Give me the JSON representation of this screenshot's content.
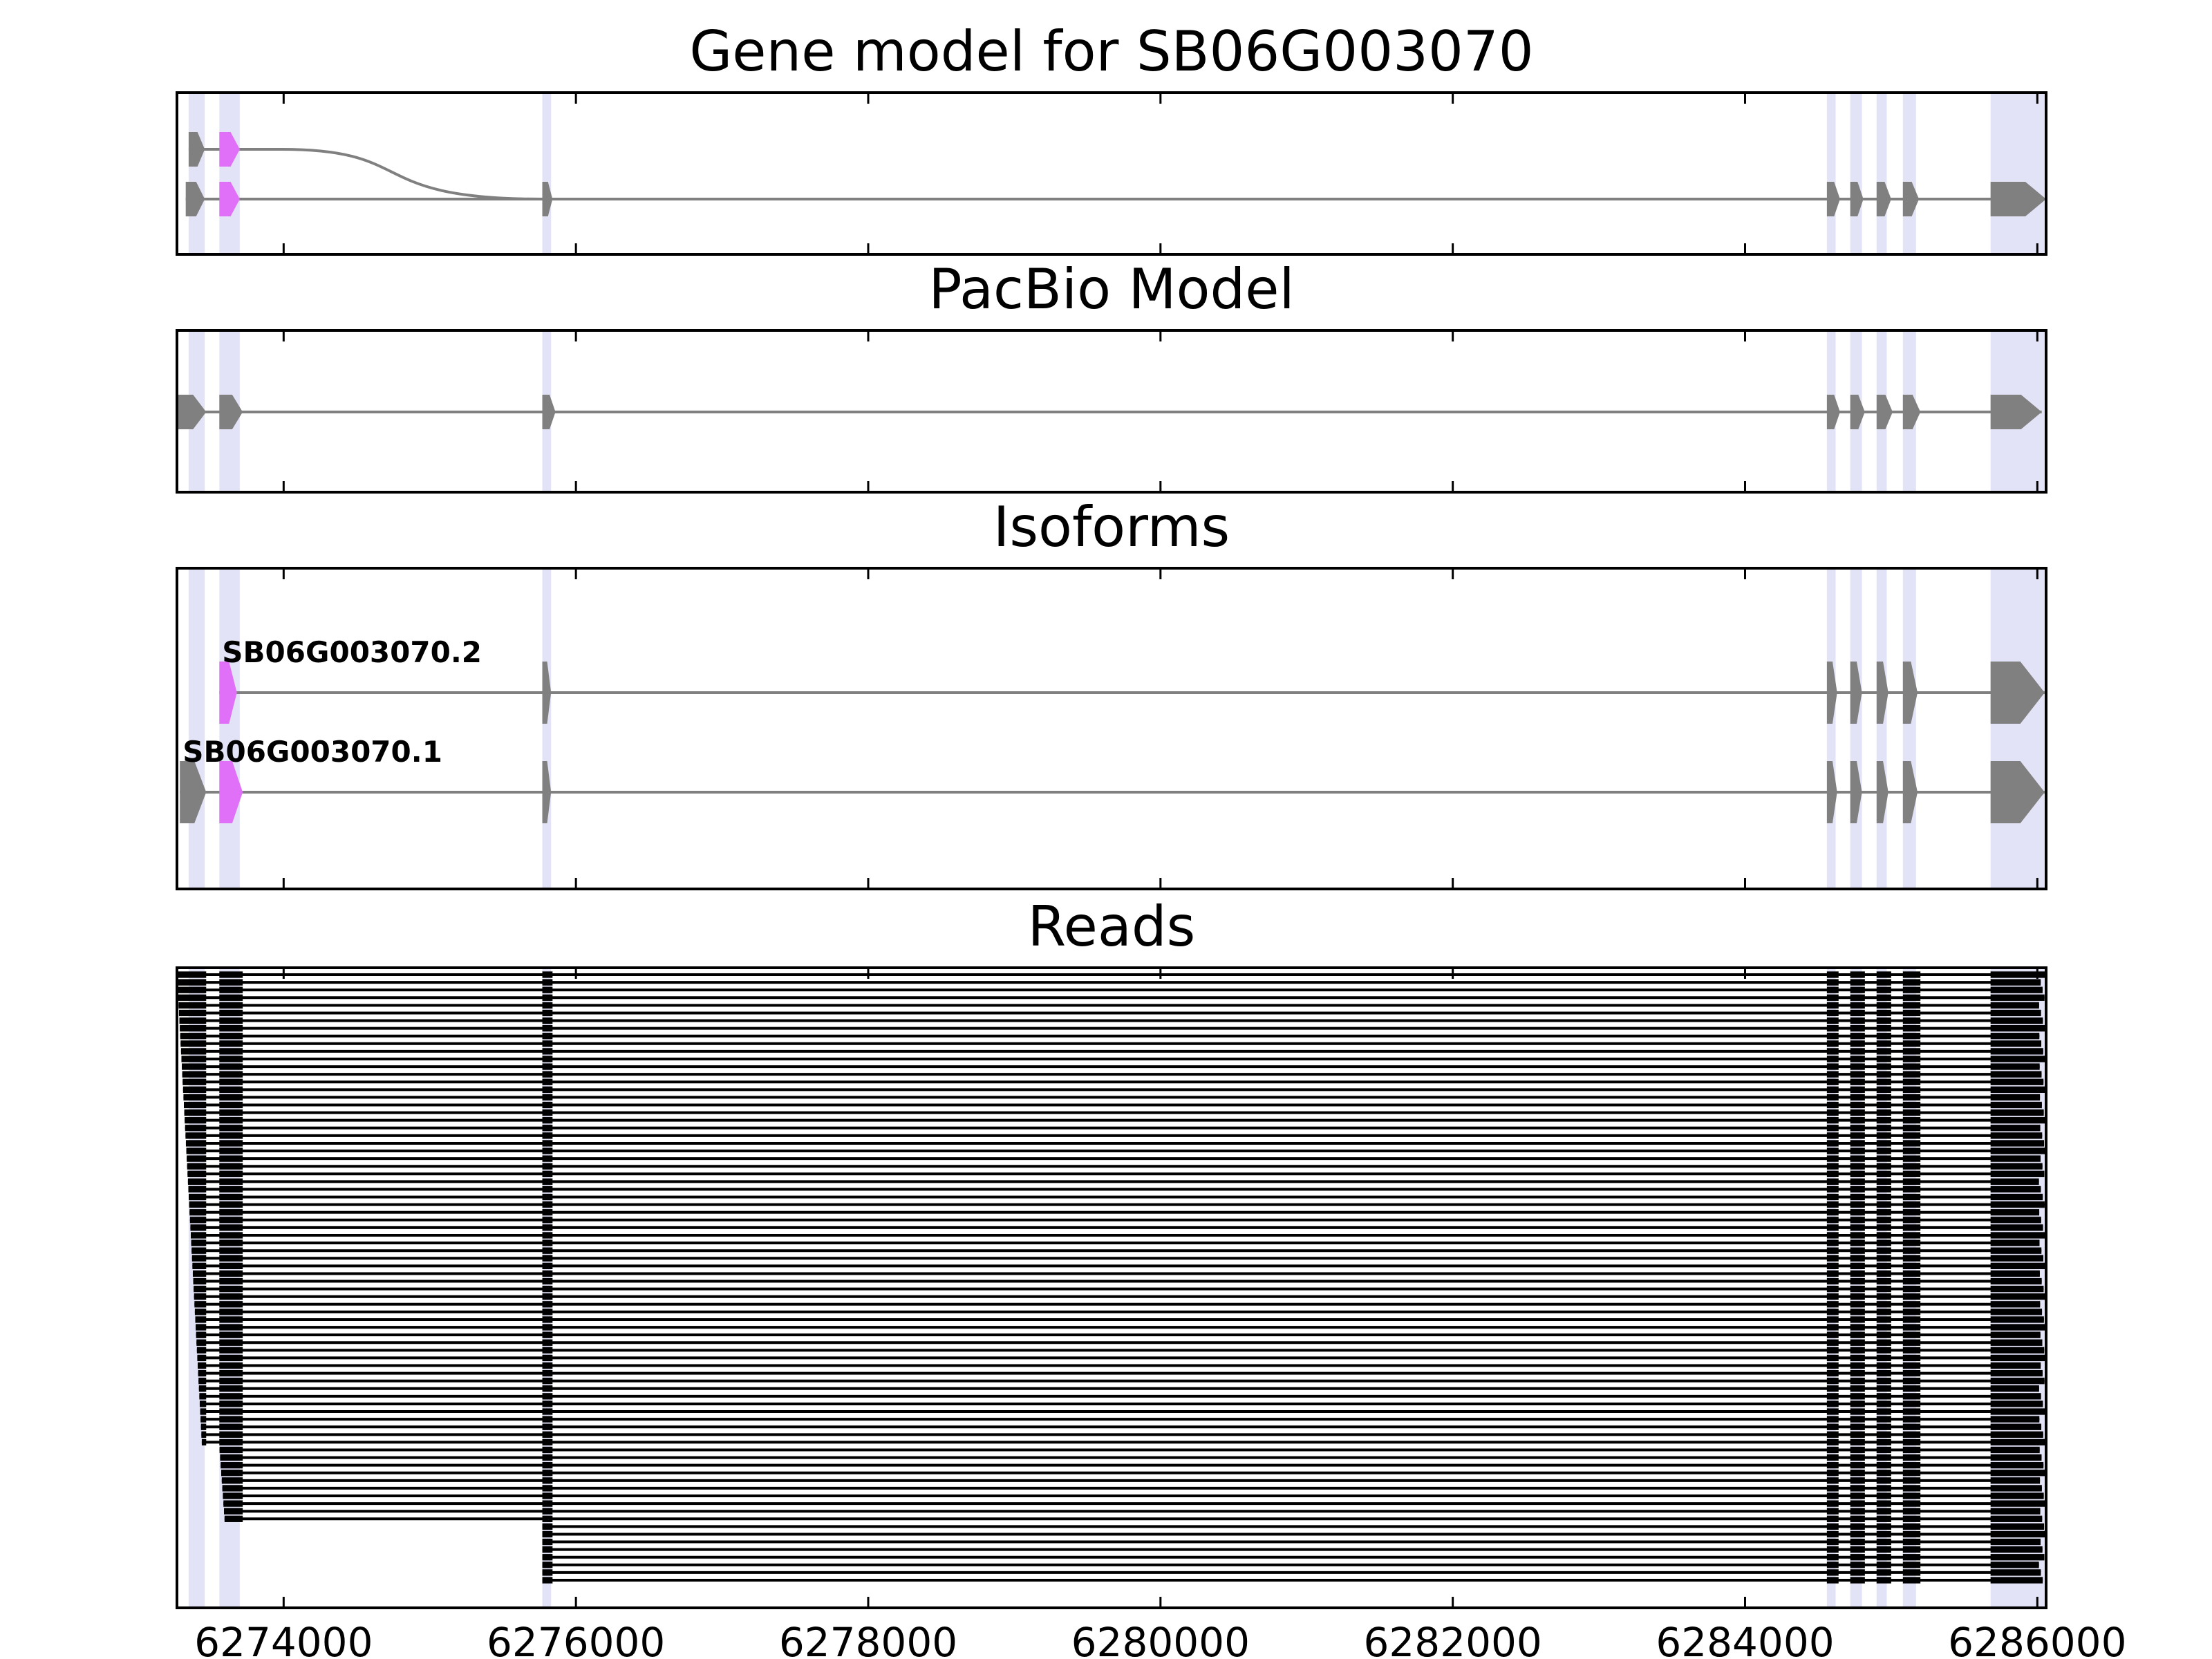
{
  "chart_data": {
    "type": "gene-structure",
    "x_axis": {
      "range": [
        6273270,
        6286060
      ],
      "ticks": [
        6274000,
        6276000,
        6278000,
        6280000,
        6282000,
        6284000,
        6286000
      ],
      "tick_labels": [
        "6274000",
        "6276000",
        "6278000",
        "6280000",
        "6282000",
        "6284000",
        "6286000"
      ]
    },
    "colors": {
      "exon": "#808080",
      "intron": "#808080",
      "highlighted_exon": "#e070f8",
      "exon_band": "#e3e3f8",
      "read": "#000000",
      "frame": "#000000"
    },
    "exon_bands": [
      [
        6273350,
        6273460
      ],
      [
        6273560,
        6273700
      ],
      [
        6275770,
        6275830
      ],
      [
        6284560,
        6284620
      ],
      [
        6284720,
        6284800
      ],
      [
        6284900,
        6284970
      ],
      [
        6285080,
        6285170
      ],
      [
        6285680,
        6286050
      ]
    ],
    "panels": [
      {
        "title": "Gene model for SB06G003070",
        "rows": [
          {
            "label": "",
            "exons": [
              [
                6273350,
                6273460
              ],
              [
                6273560,
                6273700
              ]
            ],
            "highlighted": [
              1
            ],
            "spliced_to": 6275770
          },
          {
            "label": "",
            "exons": [
              [
                6273330,
                6273460
              ],
              [
                6273560,
                6273700
              ],
              [
                6275770,
                6275840
              ],
              [
                6284560,
                6284650
              ],
              [
                6284720,
                6284810
              ],
              [
                6284900,
                6285000
              ],
              [
                6285080,
                6285190
              ],
              [
                6285680,
                6286060
              ]
            ],
            "highlighted": [
              1
            ]
          }
        ]
      },
      {
        "title": "PacBio Model",
        "rows": [
          {
            "label": "",
            "exons": [
              [
                6273270,
                6273470
              ],
              [
                6273560,
                6273720
              ],
              [
                6275770,
                6275860
              ],
              [
                6284560,
                6284650
              ],
              [
                6284720,
                6284820
              ],
              [
                6284900,
                6285010
              ],
              [
                6285080,
                6285200
              ],
              [
                6285680,
                6286030
              ]
            ],
            "highlighted": []
          }
        ]
      },
      {
        "title": "Isoforms",
        "rows": [
          {
            "label": "SB06G003070.2",
            "exons": [
              [
                6273560,
                6273680
              ],
              [
                6275770,
                6275830
              ],
              [
                6284560,
                6284630
              ],
              [
                6284720,
                6284800
              ],
              [
                6284900,
                6284980
              ],
              [
                6285080,
                6285180
              ],
              [
                6285680,
                6286050
              ]
            ],
            "highlighted": [
              0
            ]
          },
          {
            "label": "SB06G003070.1",
            "exons": [
              [
                6273290,
                6273470
              ],
              [
                6273560,
                6273720
              ],
              [
                6275770,
                6275830
              ],
              [
                6284560,
                6284630
              ],
              [
                6284720,
                6284800
              ],
              [
                6284900,
                6284980
              ],
              [
                6285080,
                6285180
              ],
              [
                6285680,
                6286050
              ]
            ],
            "highlighted": [
              1
            ]
          }
        ]
      },
      {
        "title": "Reads",
        "reads": {
          "count": 80,
          "exon_blocks": [
            [
              6273270,
              6273470
            ],
            [
              6273560,
              6273720
            ],
            [
              6275770,
              6275840
            ],
            [
              6284560,
              6284640
            ],
            [
              6284720,
              6284820
            ],
            [
              6284900,
              6285000
            ],
            [
              6285080,
              6285200
            ],
            [
              6285680,
              6286060
            ]
          ]
        }
      }
    ]
  }
}
